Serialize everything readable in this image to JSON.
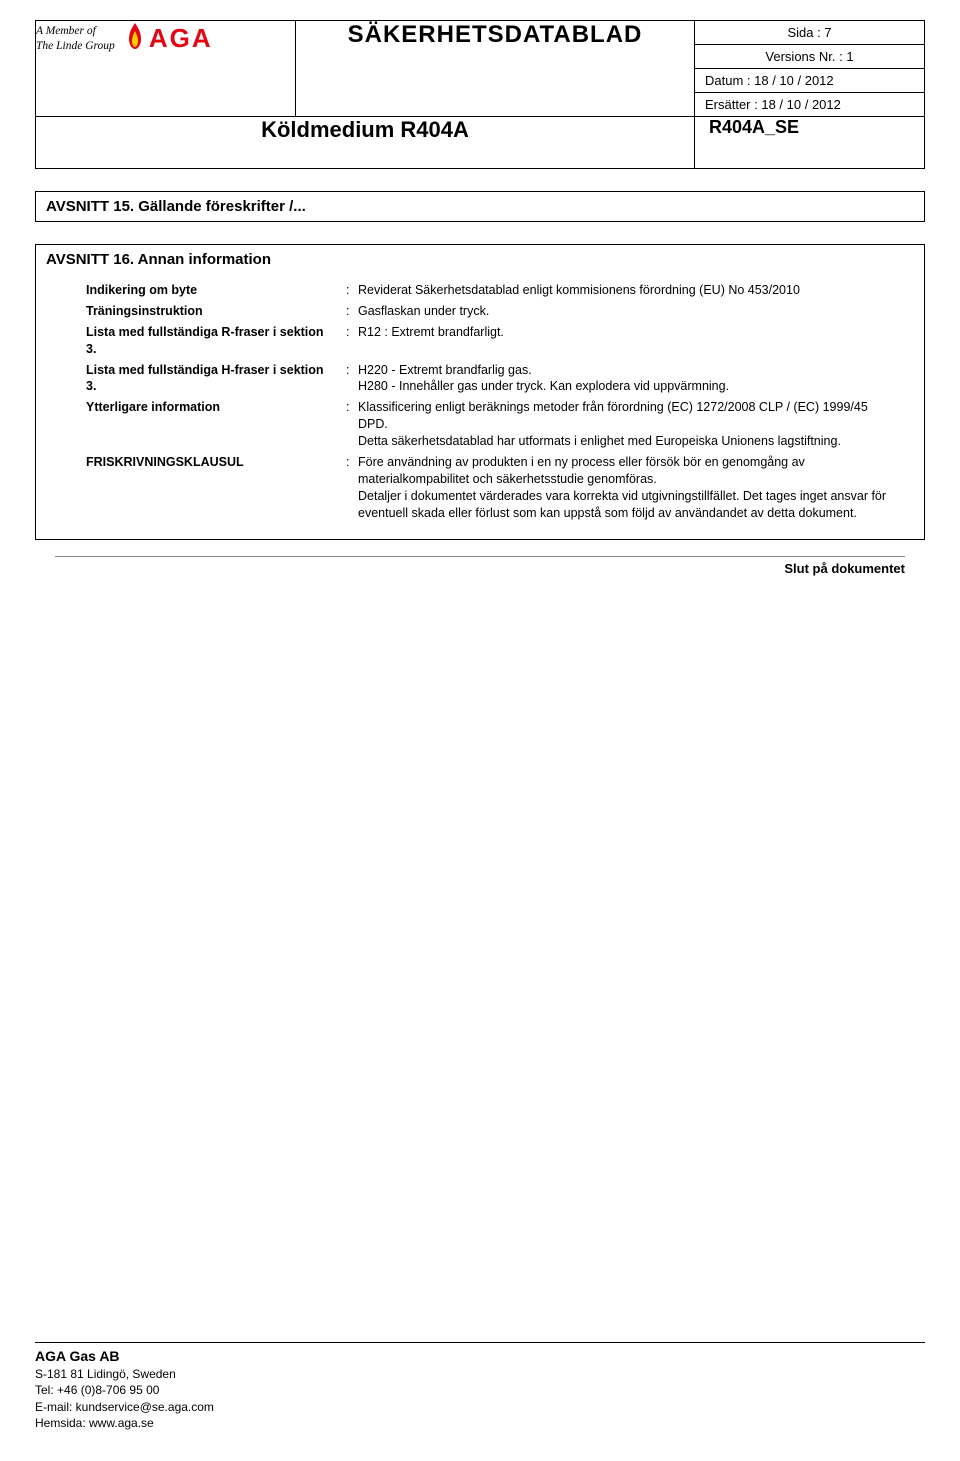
{
  "header": {
    "member_text_line1": "A Member of",
    "member_text_line2": "The Linde Group",
    "brand_text": "AGA",
    "brand_color": "#e30613",
    "doc_title": "SÄKERHETSDATABLAD",
    "meta": {
      "page": "Sida : 7",
      "version": "Versions Nr. : 1",
      "date": "Datum : 18 / 10 / 2012",
      "replaces": "Ersätter : 18 / 10 / 2012"
    },
    "product_name": "Köldmedium  R404A",
    "product_code": "R404A_SE"
  },
  "sections": {
    "section15_title": "AVSNITT 15.  Gällande föreskrifter /...",
    "section16_title": "AVSNITT 16.  Annan information"
  },
  "info": [
    {
      "label": "Indikering om byte",
      "value": "Reviderat Säkerhetsdatablad enligt kommisionens förordning (EU) No 453/2010"
    },
    {
      "label": "Träningsinstruktion",
      "value": "Gasflaskan under tryck."
    },
    {
      "label": "Lista med fullständiga R-fraser i sektion 3.",
      "value": "R12 : Extremt brandfarligt."
    },
    {
      "label": "Lista med fullständiga H-fraser i sektion 3.",
      "value": "H220 - Extremt brandfarlig gas.\nH280 - Innehåller gas under tryck. Kan explodera vid uppvärmning."
    },
    {
      "label": "Ytterligare information",
      "value": "Klassificering enligt beräknings metoder från förordning (EC) 1272/2008 CLP / (EC) 1999/45 DPD.\nDetta säkerhetsdatablad har utformats i enlighet med Europeiska Unionens lagstiftning."
    },
    {
      "label": "FRISKRIVNINGSKLAUSUL",
      "value": "Före användning av produkten i en ny process eller försök bör en genomgång av materialkompabilitet och säkerhetsstudie genomföras.\nDetaljer i dokumentet värderades vara korrekta vid utgivningstillfället. Det tages inget ansvar för eventuell skada eller förlust som kan uppstå som följd av användandet av detta dokument."
    }
  ],
  "end_text": "Slut på dokumentet",
  "footer": {
    "company": "AGA Gas AB",
    "address": "S-181 81 Lidingö, Sweden",
    "tel": "Tel: +46 (0)8-706 95 00",
    "email": "E-mail: kundservice@se.aga.com",
    "website": "Hemsida: www.aga.se"
  }
}
